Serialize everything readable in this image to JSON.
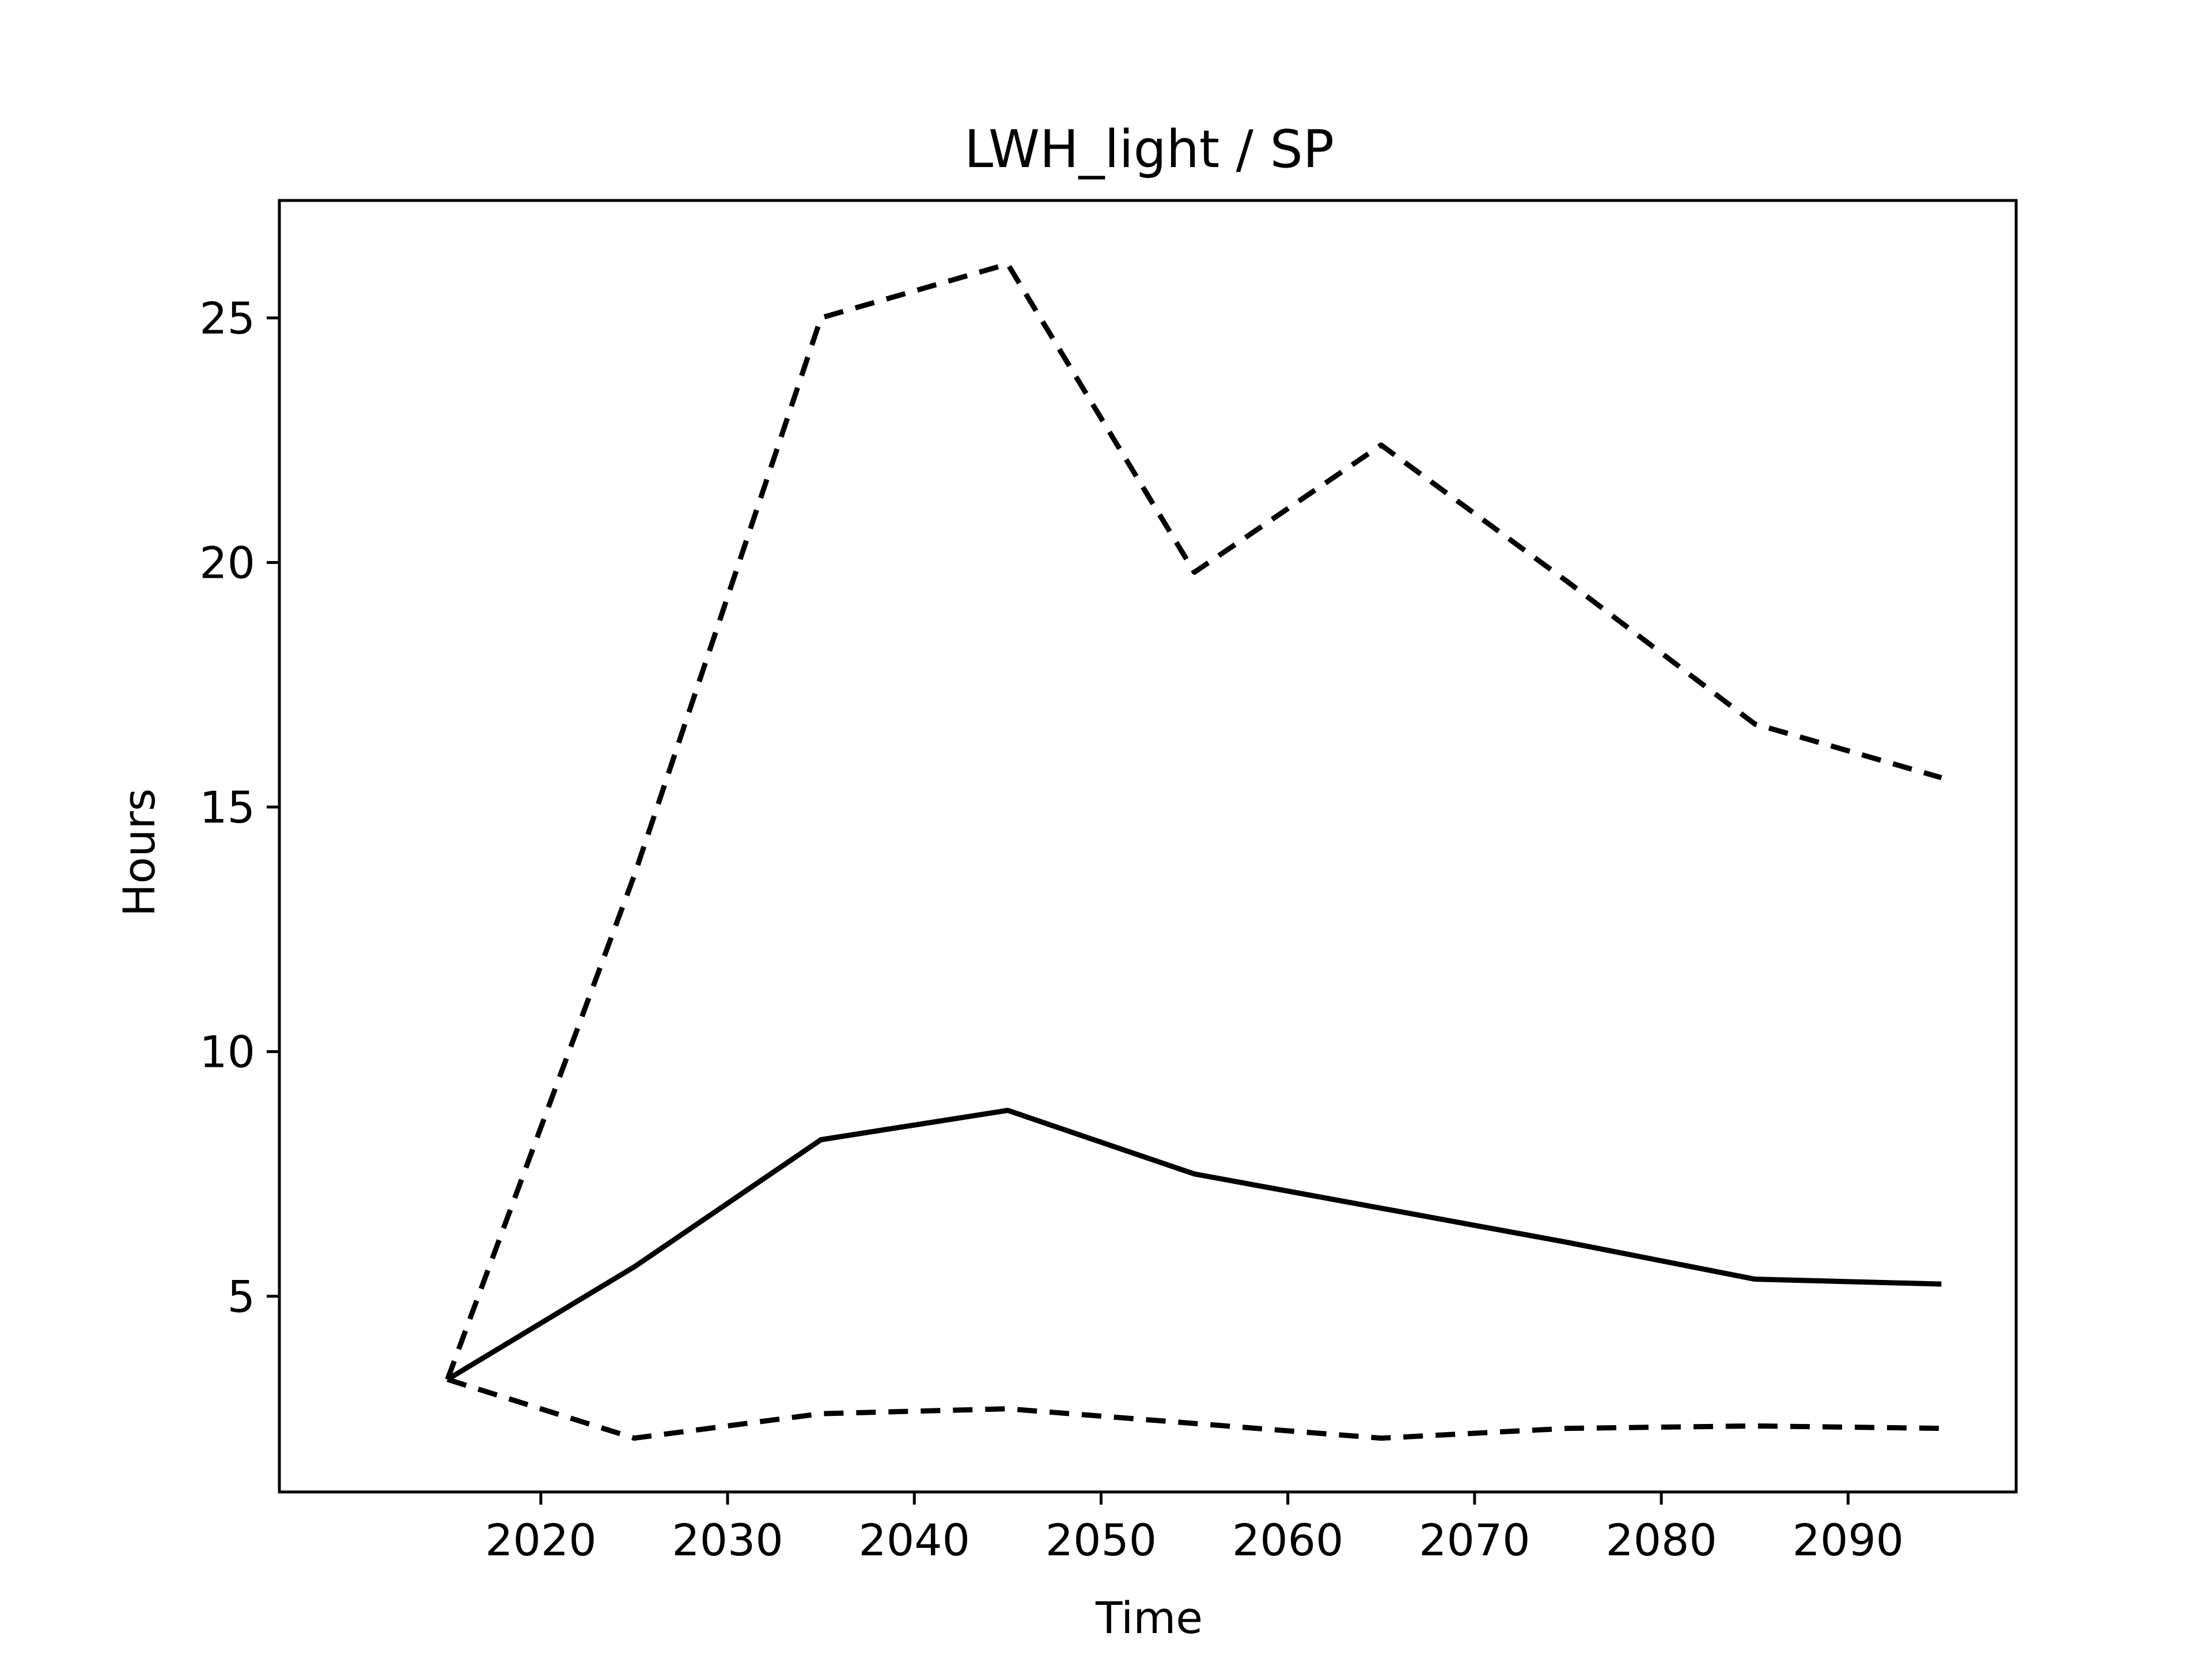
{
  "chart_data": {
    "type": "line",
    "title": "LWH_light / SP",
    "xlabel": "Time",
    "ylabel": "Hours",
    "x": [
      2015,
      2025,
      2035,
      2045,
      2055,
      2065,
      2075,
      2085,
      2095
    ],
    "xlim": [
      2006,
      2099
    ],
    "ylim": [
      1.0,
      27.4
    ],
    "xticks": [
      2020,
      2030,
      2040,
      2050,
      2060,
      2070,
      2080,
      2090
    ],
    "yticks": [
      5,
      10,
      15,
      20,
      25
    ],
    "grid": false,
    "legend": "none",
    "series": [
      {
        "style": "dashed",
        "color": "#000000",
        "values": [
          3.3,
          13.6,
          25.0,
          26.1,
          19.8,
          22.4,
          19.6,
          16.7,
          15.6
        ]
      },
      {
        "style": "solid",
        "color": "#000000",
        "values": [
          3.3,
          5.6,
          8.2,
          8.8,
          7.5,
          6.8,
          6.1,
          5.35,
          5.25
        ]
      },
      {
        "style": "dashed",
        "color": "#000000",
        "values": [
          3.3,
          2.1,
          2.6,
          2.7,
          2.4,
          2.1,
          2.3,
          2.35,
          2.3
        ]
      }
    ]
  }
}
